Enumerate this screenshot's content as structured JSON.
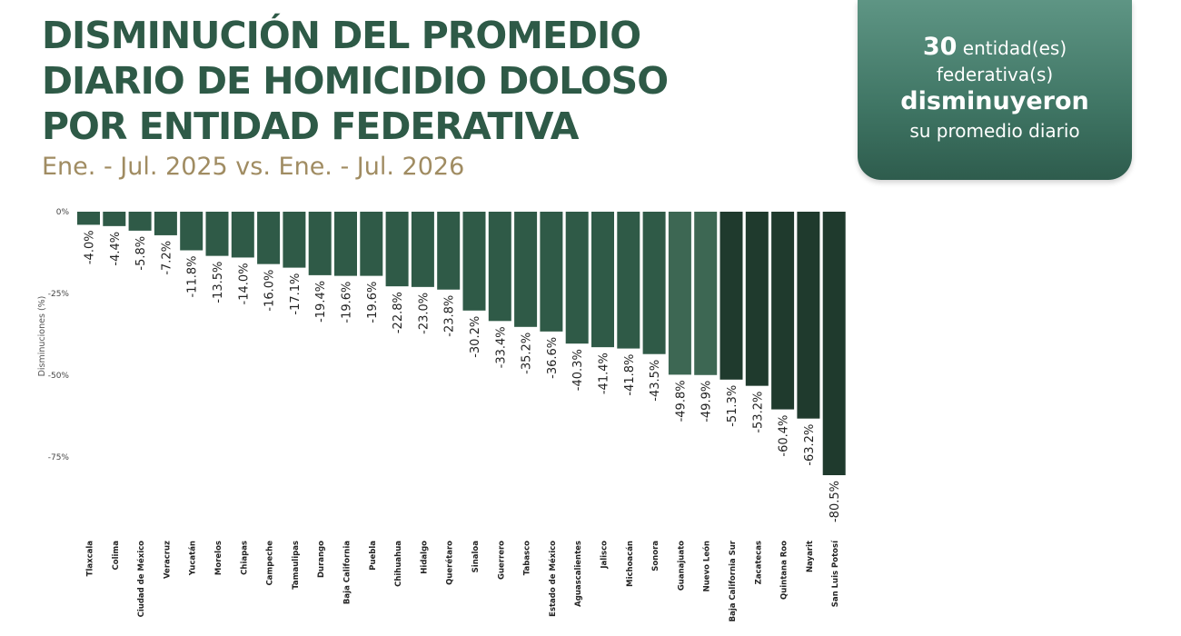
{
  "header": {
    "title_lines": [
      "DISMINUCIÓN DEL PROMEDIO",
      "DIARIO DE HOMICIDIO DOLOSO",
      "POR ENTIDAD FEDERATIVA"
    ],
    "subtitle": "Ene. - Jul. 2025 vs. Ene. - Jul. 2026"
  },
  "callout": {
    "count": "30",
    "count_suffix": "entidad(es)",
    "line2": "federativa(s)",
    "line3": "disminuyeron",
    "line4": "su promedio diario"
  },
  "colors": {
    "title": "#2e5a47",
    "subtitle": "#a08c62",
    "bar_medium": "#2f5a47",
    "bar_light": "#3d6753",
    "bar_dark": "#1f3a2d"
  },
  "chart_data": {
    "type": "bar",
    "ylabel": "Disminuciones (%)",
    "ylim": [
      -80.5,
      0
    ],
    "yticks": [
      0,
      -25,
      -50,
      -75
    ],
    "ytick_labels": [
      "0%",
      "-25%",
      "-50%",
      "-75%"
    ],
    "categories": [
      "Tlaxcala",
      "Colima",
      "Ciudad de México",
      "Veracruz",
      "Yucatán",
      "Morelos",
      "Chiapas",
      "Campeche",
      "Tamaulipas",
      "Durango",
      "Baja California",
      "Puebla",
      "Chihuahua",
      "Hidalgo",
      "Querétaro",
      "Sinaloa",
      "Guerrero",
      "Tabasco",
      "Estado de México",
      "Aguascalientes",
      "Jalisco",
      "Michoacán",
      "Sonora",
      "Guanajuato",
      "Nuevo León",
      "Baja California Sur",
      "Zacatecas",
      "Quintana Roo",
      "Nayarit",
      "San Luis Potosí"
    ],
    "values": [
      -4.0,
      -4.4,
      -5.8,
      -7.2,
      -11.8,
      -13.5,
      -14.0,
      -16.0,
      -17.1,
      -19.4,
      -19.6,
      -19.6,
      -22.8,
      -23.0,
      -23.8,
      -30.2,
      -33.4,
      -35.2,
      -36.6,
      -40.3,
      -41.4,
      -41.8,
      -43.5,
      -49.8,
      -49.9,
      -51.3,
      -53.2,
      -60.4,
      -63.2,
      -80.5
    ],
    "value_labels": [
      "-4.0%",
      "-4.4%",
      "-5.8%",
      "-7.2%",
      "-11.8%",
      "-13.5%",
      "-14.0%",
      "-16.0%",
      "-17.1%",
      "-19.4%",
      "-19.6%",
      "-19.6%",
      "-22.8%",
      "-23.0%",
      "-23.8%",
      "-30.2%",
      "-33.4%",
      "-35.2%",
      "-36.6%",
      "-40.3%",
      "-41.4%",
      "-41.8%",
      "-43.5%",
      "-49.8%",
      "-49.9%",
      "-51.3%",
      "-53.2%",
      "-60.4%",
      "-63.2%",
      "-80.5%"
    ],
    "bar_shades": [
      "medium",
      "medium",
      "medium",
      "medium",
      "medium",
      "medium",
      "medium",
      "medium",
      "medium",
      "medium",
      "medium",
      "medium",
      "medium",
      "medium",
      "medium",
      "medium",
      "medium",
      "medium",
      "medium",
      "medium",
      "medium",
      "medium",
      "medium",
      "light",
      "light",
      "dark",
      "dark",
      "dark",
      "dark",
      "dark"
    ],
    "grid": false,
    "legend": "none"
  }
}
